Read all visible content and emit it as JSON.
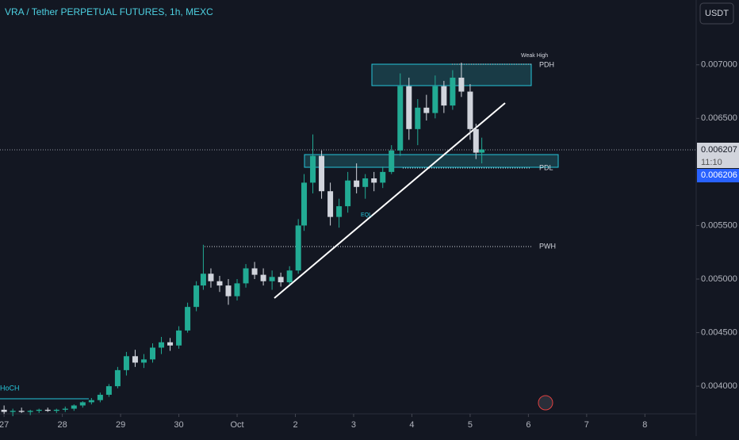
{
  "chart_data": {
    "type": "candlestick",
    "title": "VRA / Tether PERPETUAL FUTURES, 1h, MEXC",
    "currency_button": "USDT",
    "up_color": "#22ab94",
    "down_color": "#d1d4dc",
    "xlim": [
      -0.07,
      11.88
    ],
    "xticks": [
      {
        "value": 0,
        "label": "27"
      },
      {
        "value": 1,
        "label": "28"
      },
      {
        "value": 2,
        "label": "29"
      },
      {
        "value": 3,
        "label": "30"
      },
      {
        "value": 4,
        "label": "Oct"
      },
      {
        "value": 5,
        "label": "2"
      },
      {
        "value": 6,
        "label": "3"
      },
      {
        "value": 7,
        "label": "4"
      },
      {
        "value": 8,
        "label": "5"
      },
      {
        "value": 9,
        "label": "6"
      },
      {
        "value": 10,
        "label": "7"
      },
      {
        "value": 11,
        "label": "8"
      }
    ],
    "ylim": [
      0.003742,
      0.007605
    ],
    "yticks": [
      {
        "value": 0.004,
        "label": "0.004000"
      },
      {
        "value": 0.0045,
        "label": "0.004500"
      },
      {
        "value": 0.005,
        "label": "0.005000"
      },
      {
        "value": 0.0055,
        "label": "0.005500"
      },
      {
        "value": 0.0065,
        "label": "0.006500"
      },
      {
        "value": 0.007,
        "label": "0.007000"
      }
    ],
    "x": [
      0.0,
      0.15,
      0.3,
      0.45,
      0.6,
      0.75,
      0.9,
      1.05,
      1.2,
      1.35,
      1.5,
      1.65,
      1.8,
      1.95,
      2.1,
      2.25,
      2.4,
      2.55,
      2.7,
      2.85,
      3.0,
      3.15,
      3.3,
      3.42,
      3.55,
      3.7,
      3.85,
      4.0,
      4.15,
      4.3,
      4.45,
      4.6,
      4.75,
      4.9,
      5.05,
      5.15,
      5.3,
      5.45,
      5.6,
      5.75,
      5.9,
      6.05,
      6.2,
      6.35,
      6.5,
      6.65,
      6.8,
      6.95,
      7.1,
      7.25,
      7.4,
      7.55,
      7.7,
      7.85,
      8.0,
      8.1,
      8.2
    ],
    "open": [
      0.00378,
      0.00376,
      0.00377,
      0.00376,
      0.00377,
      0.00378,
      0.00377,
      0.00378,
      0.00379,
      0.00382,
      0.00385,
      0.00387,
      0.00392,
      0.004,
      0.00415,
      0.00428,
      0.00422,
      0.00425,
      0.00436,
      0.00441,
      0.00438,
      0.00452,
      0.00474,
      0.00494,
      0.00505,
      0.00498,
      0.00494,
      0.00484,
      0.00496,
      0.0051,
      0.00504,
      0.00498,
      0.00502,
      0.00497,
      0.00508,
      0.0055,
      0.0059,
      0.00615,
      0.00582,
      0.00558,
      0.00568,
      0.00592,
      0.00586,
      0.00594,
      0.0059,
      0.006,
      0.0062,
      0.0068,
      0.0064,
      0.0066,
      0.00655,
      0.0068,
      0.00662,
      0.00688,
      0.00675,
      0.0064,
      0.00618
    ],
    "high": [
      0.00382,
      0.00379,
      0.0038,
      0.00378,
      0.00379,
      0.0038,
      0.00379,
      0.00381,
      0.00383,
      0.00386,
      0.00389,
      0.00394,
      0.00402,
      0.00418,
      0.00432,
      0.00434,
      0.0043,
      0.0044,
      0.00446,
      0.00445,
      0.00456,
      0.00478,
      0.00498,
      0.00532,
      0.0051,
      0.00503,
      0.005,
      0.005,
      0.00514,
      0.00516,
      0.0051,
      0.00508,
      0.00506,
      0.00512,
      0.00556,
      0.00598,
      0.00635,
      0.0062,
      0.0059,
      0.00575,
      0.006,
      0.00608,
      0.00598,
      0.006,
      0.00605,
      0.00625,
      0.00692,
      0.00688,
      0.00668,
      0.00672,
      0.0069,
      0.00685,
      0.00695,
      0.00702,
      0.00682,
      0.00645,
      0.00632
    ],
    "low": [
      0.00374,
      0.00372,
      0.00375,
      0.00373,
      0.00375,
      0.00376,
      0.00375,
      0.00376,
      0.00377,
      0.0038,
      0.00383,
      0.00385,
      0.0039,
      0.00398,
      0.0041,
      0.00418,
      0.00417,
      0.00422,
      0.0043,
      0.00433,
      0.00435,
      0.0045,
      0.0047,
      0.0049,
      0.00492,
      0.00488,
      0.00476,
      0.0048,
      0.00492,
      0.005,
      0.00494,
      0.0049,
      0.00493,
      0.00495,
      0.00505,
      0.00545,
      0.0058,
      0.00575,
      0.0055,
      0.00548,
      0.00562,
      0.0058,
      0.00575,
      0.00582,
      0.00585,
      0.00598,
      0.00615,
      0.0063,
      0.00625,
      0.00648,
      0.0065,
      0.00655,
      0.00658,
      0.0067,
      0.0063,
      0.00612,
      0.00608
    ],
    "close": [
      0.00376,
      0.00377,
      0.00376,
      0.00377,
      0.00378,
      0.00377,
      0.00378,
      0.00379,
      0.00382,
      0.00385,
      0.00387,
      0.00392,
      0.004,
      0.00415,
      0.00428,
      0.00422,
      0.00425,
      0.00436,
      0.00441,
      0.00438,
      0.00452,
      0.00474,
      0.00494,
      0.00505,
      0.00498,
      0.00494,
      0.00484,
      0.00496,
      0.0051,
      0.00504,
      0.00498,
      0.00502,
      0.00497,
      0.00508,
      0.0055,
      0.0059,
      0.00615,
      0.00582,
      0.00558,
      0.00568,
      0.00592,
      0.00586,
      0.00594,
      0.0059,
      0.006,
      0.0062,
      0.0068,
      0.0064,
      0.0066,
      0.00655,
      0.0068,
      0.00662,
      0.00688,
      0.00675,
      0.0064,
      0.00618,
      0.00621
    ],
    "annotations": {
      "pdh": "PDH",
      "pdl": "PDL",
      "pwh": "PWH",
      "weak_high": "Weak High",
      "eql": "EQL",
      "choch": "HoCH"
    },
    "last_price": "0.006207",
    "countdown": "11:10",
    "bid_price": "0.006206"
  }
}
